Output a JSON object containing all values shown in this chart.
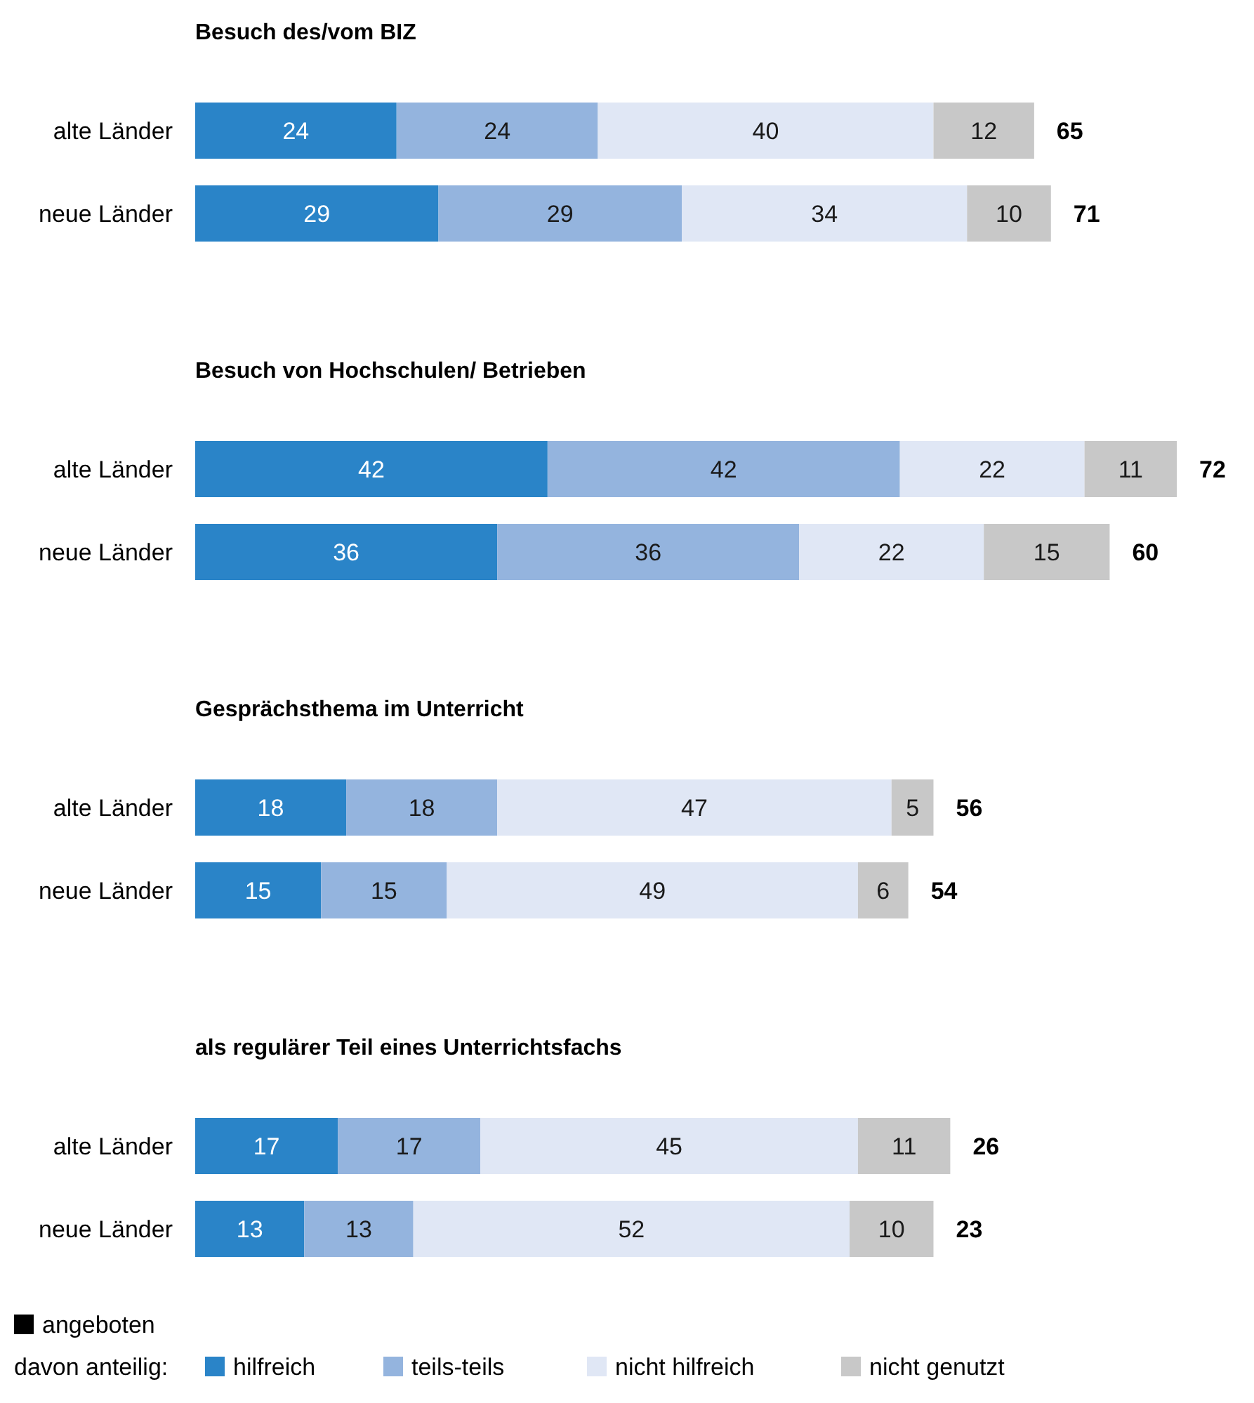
{
  "chart_data": [
    {
      "type": "bar",
      "orientation": "horizontal",
      "stacked": true,
      "data_labels": true,
      "title": "Besuch des/vom BIZ",
      "categories": [
        "alte Länder",
        "neue Länder"
      ],
      "annotations": [
        {
          "text": "65",
          "x": 100,
          "y": "alte Länder"
        },
        {
          "text": "71",
          "x": 102,
          "y": "neue Länder"
        }
      ],
      "series": [
        {
          "color": "#2a84c8",
          "values": [
            24,
            29
          ]
        },
        {
          "color": "#94b4de",
          "values": [
            24,
            29
          ]
        },
        {
          "color": "#e0e7f5",
          "values": [
            40,
            34
          ]
        },
        {
          "color": "#c8c8c8",
          "values": [
            12,
            10
          ]
        }
      ]
    },
    {
      "type": "bar",
      "orientation": "horizontal",
      "stacked": true,
      "data_labels": true,
      "title": "Besuch von Hochschulen/ Betrieben",
      "categories": [
        "alte Länder",
        "neue Länder"
      ],
      "annotations": [
        {
          "text": "72",
          "x": 117,
          "y": "alte Länder"
        },
        {
          "text": "60",
          "x": 109,
          "y": "neue Länder"
        }
      ],
      "series": [
        {
          "color": "#2a84c8",
          "values": [
            42,
            36
          ]
        },
        {
          "color": "#94b4de",
          "values": [
            42,
            36
          ]
        },
        {
          "color": "#e0e7f5",
          "values": [
            22,
            22
          ]
        },
        {
          "color": "#c8c8c8",
          "values": [
            11,
            15
          ]
        }
      ]
    },
    {
      "type": "bar",
      "orientation": "horizontal",
      "stacked": true,
      "data_labels": true,
      "title": "Gesprächsthema im Unterricht",
      "categories": [
        "alte Länder",
        "neue Länder"
      ],
      "annotations": [
        {
          "text": "56",
          "x": 88,
          "y": "alte Länder"
        },
        {
          "text": "54",
          "x": 85,
          "y": "neue Länder"
        }
      ],
      "series": [
        {
          "color": "#2a84c8",
          "values": [
            18,
            15
          ]
        },
        {
          "color": "#94b4de",
          "values": [
            18,
            15
          ]
        },
        {
          "color": "#e0e7f5",
          "values": [
            47,
            49
          ]
        },
        {
          "color": "#c8c8c8",
          "values": [
            5,
            6
          ]
        }
      ]
    },
    {
      "type": "bar",
      "orientation": "horizontal",
      "stacked": true,
      "data_labels": true,
      "title": "als regulärer Teil eines  Unterrichtsfachs",
      "categories": [
        "alte Länder",
        "neue Länder"
      ],
      "legend": "bottom",
      "legend_title": "davon anteilig:",
      "annotations": [
        {
          "text": "26",
          "x": 90,
          "y": "alte Länder"
        },
        {
          "text": "23",
          "x": 88,
          "y": "neue Länder"
        },
        "angeboten"
      ],
      "series": [
        {
          "name": "hilfreich",
          "color": "#2a84c8",
          "values": [
            17,
            13
          ]
        },
        {
          "name": "teils-teils",
          "color": "#94b4de",
          "values": [
            17,
            13
          ]
        },
        {
          "name": "nicht hilfreich",
          "color": "#e0e7f5",
          "values": [
            45,
            52
          ]
        },
        {
          "name": "nicht genutzt",
          "color": "#c8c8c8",
          "values": [
            11,
            10
          ]
        }
      ]
    }
  ]
}
